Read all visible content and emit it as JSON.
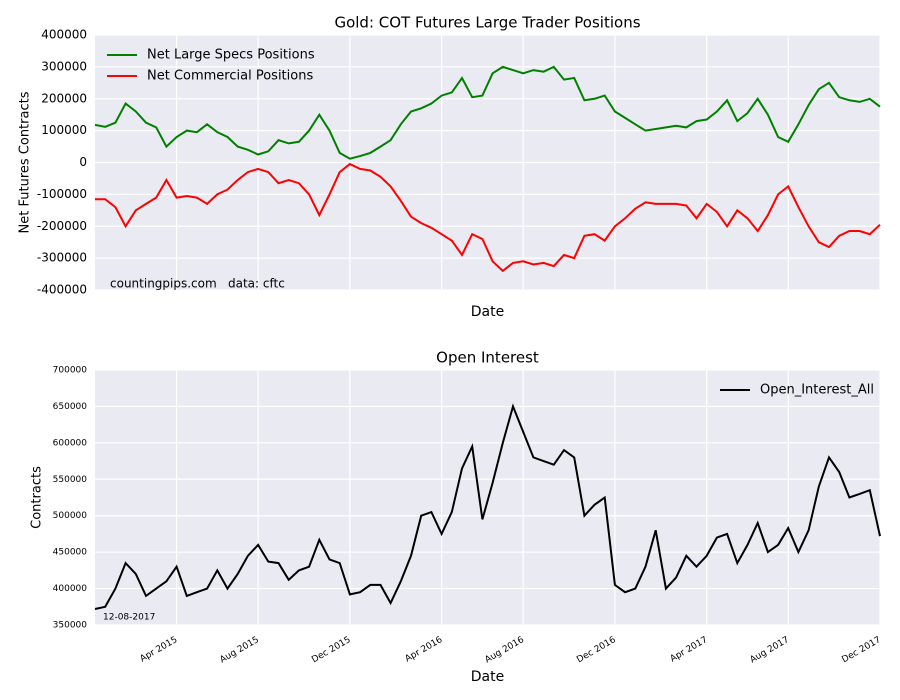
{
  "chart_data": [
    {
      "type": "line",
      "title": "Gold: COT Futures Large Trader Positions",
      "ylabel": "Net Futures Contracts",
      "xlabel": "Date",
      "annotations": [
        "countingpips.com",
        "data: cftc"
      ],
      "legend": "upper left",
      "grid": true,
      "ylim": [
        -400000,
        400000
      ],
      "yticks": [
        -400000,
        -300000,
        -200000,
        -100000,
        0,
        100000,
        200000,
        300000,
        400000
      ],
      "series": [
        {
          "name": "Net Large Specs Positions",
          "color": "#008000",
          "values": [
            118000,
            112000,
            125000,
            185000,
            160000,
            125000,
            110000,
            50000,
            80000,
            100000,
            95000,
            120000,
            95000,
            80000,
            50000,
            40000,
            25000,
            35000,
            70000,
            60000,
            65000,
            100000,
            150000,
            100000,
            30000,
            12000,
            20000,
            30000,
            50000,
            70000,
            120000,
            160000,
            170000,
            185000,
            210000,
            220000,
            265000,
            205000,
            210000,
            280000,
            300000,
            290000,
            280000,
            290000,
            285000,
            300000,
            260000,
            265000,
            195000,
            200000,
            210000,
            160000,
            140000,
            120000,
            100000,
            105000,
            110000,
            115000,
            110000,
            130000,
            135000,
            160000,
            195000,
            130000,
            155000,
            200000,
            150000,
            80000,
            65000,
            120000,
            180000,
            230000,
            250000,
            205000,
            195000,
            190000,
            200000,
            175000
          ]
        },
        {
          "name": "Net Commercial Positions",
          "color": "#ff0000",
          "values": [
            -115000,
            -115000,
            -140000,
            -200000,
            -150000,
            -130000,
            -110000,
            -55000,
            -110000,
            -105000,
            -110000,
            -130000,
            -100000,
            -85000,
            -55000,
            -30000,
            -20000,
            -30000,
            -65000,
            -55000,
            -65000,
            -100000,
            -165000,
            -100000,
            -30000,
            -5000,
            -20000,
            -25000,
            -45000,
            -75000,
            -120000,
            -170000,
            -190000,
            -205000,
            -225000,
            -245000,
            -290000,
            -225000,
            -240000,
            -310000,
            -340000,
            -315000,
            -310000,
            -320000,
            -315000,
            -325000,
            -290000,
            -300000,
            -230000,
            -225000,
            -245000,
            -200000,
            -175000,
            -145000,
            -125000,
            -130000,
            -130000,
            -130000,
            -135000,
            -175000,
            -130000,
            -155000,
            -200000,
            -150000,
            -175000,
            -215000,
            -165000,
            -100000,
            -75000,
            -140000,
            -200000,
            -250000,
            -265000,
            -230000,
            -215000,
            -215000,
            -225000,
            -195000
          ]
        }
      ]
    },
    {
      "type": "line",
      "title": "Open Interest",
      "ylabel": "Contracts",
      "xlabel": "Date",
      "annotations": [
        "12-08-2017"
      ],
      "legend": "upper right",
      "grid": true,
      "ylim": [
        350000,
        700000
      ],
      "yticks": [
        350000,
        400000,
        450000,
        500000,
        550000,
        600000,
        650000,
        700000
      ],
      "categories": [
        null,
        null,
        null,
        null,
        null,
        null,
        null,
        null,
        "Apr 2015",
        null,
        null,
        null,
        null,
        null,
        null,
        null,
        "Aug 2015",
        null,
        null,
        null,
        null,
        null,
        null,
        null,
        null,
        "Dec 2015",
        null,
        null,
        null,
        null,
        null,
        null,
        null,
        null,
        "Apr 2016",
        null,
        null,
        null,
        null,
        null,
        null,
        null,
        "Aug 2016",
        null,
        null,
        null,
        null,
        null,
        null,
        null,
        null,
        "Dec 2016",
        null,
        null,
        null,
        null,
        null,
        null,
        null,
        null,
        "Apr 2017",
        null,
        null,
        null,
        null,
        null,
        null,
        null,
        "Aug 2017",
        null,
        null,
        null,
        null,
        null,
        null,
        null,
        null,
        "Dec 2017"
      ],
      "series": [
        {
          "name": "Open_Interest_All",
          "color": "#000000",
          "values": [
            372000,
            375000,
            400000,
            435000,
            420000,
            390000,
            400000,
            410000,
            430000,
            390000,
            395000,
            400000,
            425000,
            400000,
            420000,
            445000,
            460000,
            437000,
            435000,
            412000,
            425000,
            430000,
            467000,
            440000,
            435000,
            392000,
            395000,
            405000,
            405000,
            380000,
            410000,
            445000,
            500000,
            505000,
            475000,
            505000,
            565000,
            595000,
            495000,
            545000,
            600000,
            650000,
            615000,
            580000,
            575000,
            570000,
            590000,
            580000,
            500000,
            515000,
            525000,
            405000,
            395000,
            400000,
            430000,
            480000,
            400000,
            415000,
            445000,
            430000,
            445000,
            470000,
            475000,
            435000,
            460000,
            490000,
            450000,
            460000,
            483000,
            450000,
            480000,
            540000,
            580000,
            560000,
            525000,
            530000,
            535000,
            472000
          ]
        }
      ]
    }
  ]
}
